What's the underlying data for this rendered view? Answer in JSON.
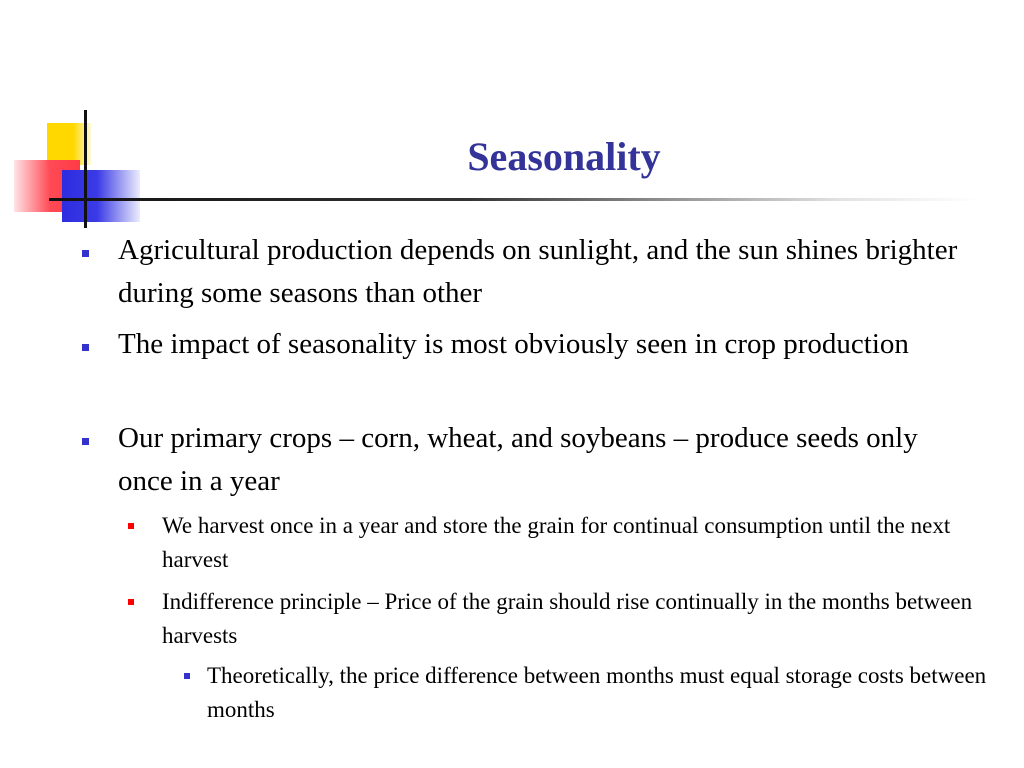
{
  "slide": {
    "title": "Seasonality",
    "colors": {
      "title": "#333399",
      "bullet_l1": "#3333cc",
      "bullet_l2": "#ff0000",
      "bullet_l3": "#3333cc"
    },
    "items": [
      {
        "level": 1,
        "text": "Agricultural production depends on sunlight, and the sun shines brighter during some seasons than other"
      },
      {
        "level": 1,
        "text": "The impact of seasonality is most obviously seen in crop production"
      },
      {
        "level": 1,
        "text": "Our primary crops – corn, wheat, and soybeans – produce seeds only once in a year"
      },
      {
        "level": 2,
        "text": "We harvest once in a year and store the grain for continual consumption until the next harvest"
      },
      {
        "level": 2,
        "text": "Indifference principle – Price of the grain should rise continually in the months between harvests"
      },
      {
        "level": 3,
        "text": "Theoretically, the price difference between months must equal storage costs between months"
      }
    ]
  }
}
